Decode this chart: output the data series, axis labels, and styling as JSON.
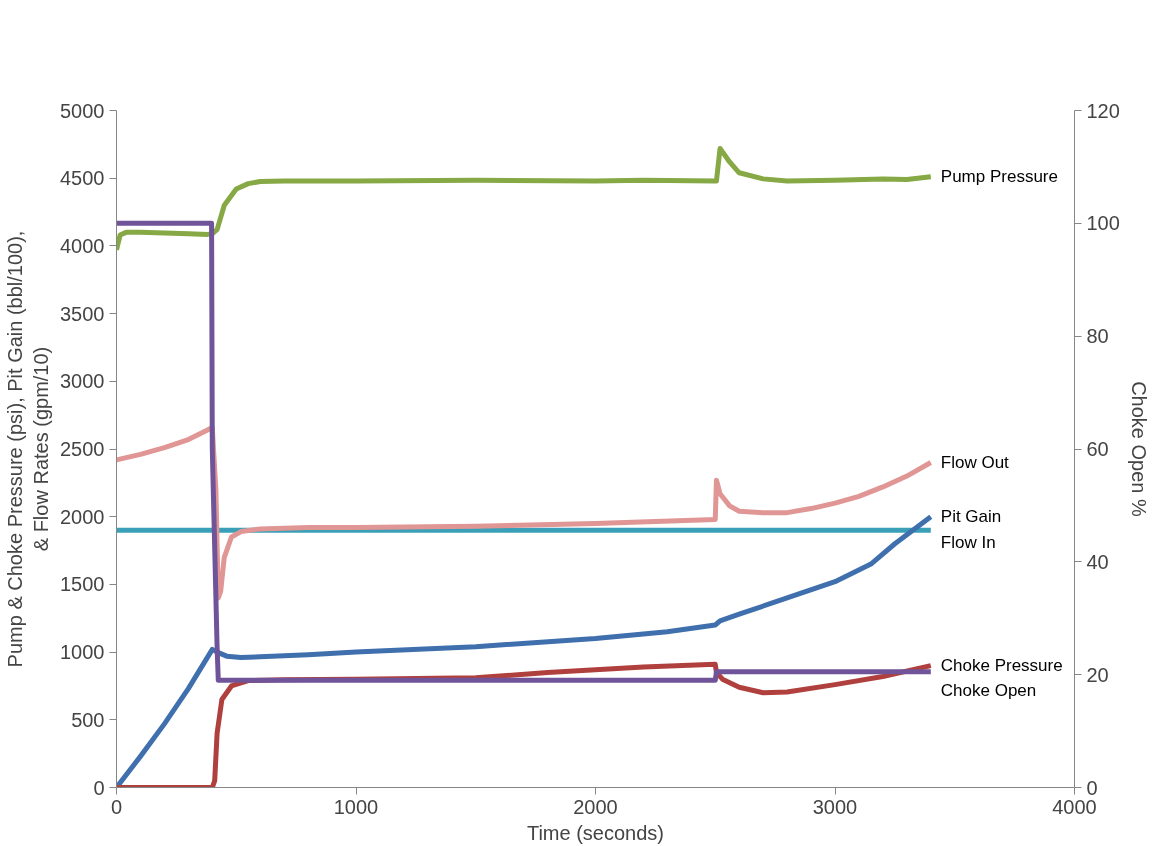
{
  "chart_data": {
    "type": "line",
    "xlabel": "Time (seconds)",
    "ylabel": "Pump & Choke Pressure (psi), Pit Gain (bbl/100),\n& Flow Rates (gpm/10)",
    "y2label": "Choke Open %",
    "xlim": [
      0,
      4000
    ],
    "xticks": [
      0,
      1000,
      2000,
      3000,
      4000
    ],
    "ylim": [
      0,
      5000
    ],
    "yticks": [
      0,
      500,
      1000,
      1500,
      2000,
      2500,
      3000,
      3500,
      4000,
      4500,
      5000
    ],
    "y2lim": [
      0,
      120
    ],
    "y2ticks": [
      0,
      20,
      40,
      60,
      80,
      100,
      120
    ],
    "grid": false,
    "marker": "none",
    "line_style": "solid",
    "series": [
      {
        "name": "Flow In",
        "color": "#3aa0b8",
        "x": [
          0,
          1000,
          2000,
          3000,
          3400
        ],
        "values": [
          1900,
          1900,
          1900,
          1900,
          1900
        ]
      },
      {
        "name": "Flow Out",
        "color": "#e09694",
        "x": [
          0,
          100,
          200,
          300,
          380,
          400,
          405,
          415,
          425,
          435,
          450,
          480,
          520,
          600,
          800,
          1000,
          1500,
          2000,
          2500,
          2505,
          2520,
          2560,
          2600,
          2700,
          2800,
          2900,
          3000,
          3100,
          3200,
          3300,
          3400
        ],
        "values": [
          2420,
          2460,
          2510,
          2570,
          2640,
          2660,
          2500,
          2200,
          1400,
          1450,
          1700,
          1850,
          1890,
          1910,
          1920,
          1920,
          1930,
          1950,
          1980,
          2270,
          2170,
          2080,
          2040,
          2030,
          2030,
          2060,
          2100,
          2150,
          2220,
          2300,
          2400
        ]
      },
      {
        "name": "Pit Gain",
        "color": "#3f6fad",
        "x": [
          0,
          100,
          200,
          300,
          400,
          420,
          460,
          520,
          600,
          800,
          1000,
          1500,
          2000,
          2300,
          2500,
          2520,
          2600,
          2800,
          3000,
          3150,
          3250,
          3400
        ],
        "values": [
          0,
          230,
          470,
          730,
          1020,
          1000,
          970,
          960,
          965,
          980,
          1000,
          1040,
          1100,
          1150,
          1200,
          1230,
          1280,
          1400,
          1520,
          1650,
          1800,
          2000
        ]
      },
      {
        "name": "Choke Pressure",
        "color": "#b0403d",
        "x": [
          0,
          400,
          410,
          420,
          440,
          480,
          550,
          700,
          1000,
          1500,
          1800,
          2000,
          2200,
          2500,
          2505,
          2530,
          2600,
          2700,
          2800,
          3000,
          3200,
          3400
        ],
        "values": [
          0,
          0,
          50,
          400,
          650,
          750,
          790,
          795,
          800,
          810,
          850,
          870,
          890,
          910,
          850,
          800,
          740,
          700,
          705,
          760,
          820,
          900
        ]
      },
      {
        "name": "Pump Pressure",
        "color": "#86a845",
        "x": [
          0,
          15,
          40,
          100,
          200,
          300,
          380,
          400,
          420,
          450,
          500,
          550,
          600,
          700,
          1000,
          1500,
          2000,
          2200,
          2500,
          2505,
          2520,
          2560,
          2600,
          2700,
          2800,
          3000,
          3200,
          3300,
          3400
        ],
        "values": [
          3970,
          4080,
          4100,
          4100,
          4095,
          4090,
          4085,
          4090,
          4120,
          4300,
          4420,
          4460,
          4475,
          4480,
          4480,
          4485,
          4480,
          4485,
          4480,
          4480,
          4720,
          4620,
          4540,
          4495,
          4480,
          4485,
          4495,
          4490,
          4510
        ]
      },
      {
        "name": "Choke Open",
        "color": "#6f549a",
        "axis": "y2",
        "x": [
          0,
          397,
          400,
          420,
          425,
          1000,
          2000,
          2500,
          2505,
          3000,
          3400
        ],
        "values": [
          100,
          100,
          60,
          25,
          19,
          19,
          19,
          19,
          20.5,
          20.5,
          20.5
        ]
      }
    ]
  }
}
